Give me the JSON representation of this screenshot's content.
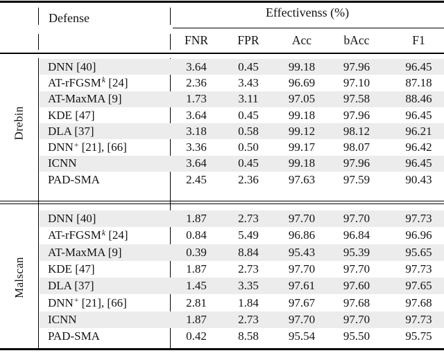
{
  "header": {
    "defense_label": "Defense",
    "group_header": "Effectivenss (%)",
    "columns": [
      "FNR",
      "FPR",
      "Acc",
      "bAcc",
      "F1"
    ]
  },
  "colors": {
    "row_shade": "#ececec",
    "rule": "#000000",
    "text": "#131313"
  },
  "groups": [
    {
      "label": "Drebin",
      "rows": [
        {
          "defense": {
            "base": "DNN",
            "sup": "",
            "sup_italic": false,
            "rest": " [40]"
          },
          "values": [
            "3.64",
            "0.45",
            "99.18",
            "97.96",
            "96.45"
          ]
        },
        {
          "defense": {
            "base": "AT-rFGSM",
            "sup": "k",
            "sup_italic": true,
            "rest": " [24]"
          },
          "values": [
            "2.36",
            "3.43",
            "96.69",
            "97.10",
            "87.18"
          ]
        },
        {
          "defense": {
            "base": "AT-MaxMA",
            "sup": "",
            "sup_italic": false,
            "rest": " [9]"
          },
          "values": [
            "1.73",
            "3.11",
            "97.05",
            "97.58",
            "88.46"
          ]
        },
        {
          "defense": {
            "base": "KDE",
            "sup": "",
            "sup_italic": false,
            "rest": " [47]"
          },
          "values": [
            "3.64",
            "0.45",
            "99.18",
            "97.96",
            "96.45"
          ]
        },
        {
          "defense": {
            "base": "DLA",
            "sup": "",
            "sup_italic": false,
            "rest": " [37]"
          },
          "values": [
            "3.18",
            "0.58",
            "99.12",
            "98.12",
            "96.21"
          ]
        },
        {
          "defense": {
            "base": "DNN",
            "sup": "+",
            "sup_italic": false,
            "rest": " [21], [66]"
          },
          "values": [
            "3.36",
            "0.50",
            "99.17",
            "98.07",
            "96.42"
          ]
        },
        {
          "defense": {
            "base": "ICNN",
            "sup": "",
            "sup_italic": false,
            "rest": ""
          },
          "values": [
            "3.64",
            "0.45",
            "99.18",
            "97.96",
            "96.45"
          ]
        },
        {
          "defense": {
            "base": "PAD-SMA",
            "sup": "",
            "sup_italic": false,
            "rest": ""
          },
          "values": [
            "2.45",
            "2.36",
            "97.63",
            "97.59",
            "90.43"
          ]
        }
      ]
    },
    {
      "label": "Malscan",
      "rows": [
        {
          "defense": {
            "base": "DNN",
            "sup": "",
            "sup_italic": false,
            "rest": " [40]"
          },
          "values": [
            "1.87",
            "2.73",
            "97.70",
            "97.70",
            "97.73"
          ]
        },
        {
          "defense": {
            "base": "AT-rFGSM",
            "sup": "k",
            "sup_italic": true,
            "rest": " [24]"
          },
          "values": [
            "0.84",
            "5.49",
            "96.86",
            "96.84",
            "96.96"
          ]
        },
        {
          "defense": {
            "base": "AT-MaxMA",
            "sup": "",
            "sup_italic": false,
            "rest": " [9]"
          },
          "values": [
            "0.39",
            "8.84",
            "95.43",
            "95.39",
            "95.65"
          ]
        },
        {
          "defense": {
            "base": "KDE",
            "sup": "",
            "sup_italic": false,
            "rest": " [47]"
          },
          "values": [
            "1.87",
            "2.73",
            "97.70",
            "97.70",
            "97.73"
          ]
        },
        {
          "defense": {
            "base": "DLA",
            "sup": "",
            "sup_italic": false,
            "rest": " [37]"
          },
          "values": [
            "1.45",
            "3.35",
            "97.61",
            "97.60",
            "97.65"
          ]
        },
        {
          "defense": {
            "base": "DNN",
            "sup": "+",
            "sup_italic": false,
            "rest": " [21], [66]"
          },
          "values": [
            "2.81",
            "1.84",
            "97.67",
            "97.68",
            "97.68"
          ]
        },
        {
          "defense": {
            "base": "ICNN",
            "sup": "",
            "sup_italic": false,
            "rest": ""
          },
          "values": [
            "1.87",
            "2.73",
            "97.70",
            "97.70",
            "97.73"
          ]
        },
        {
          "defense": {
            "base": "PAD-SMA",
            "sup": "",
            "sup_italic": false,
            "rest": ""
          },
          "values": [
            "0.42",
            "8.58",
            "95.54",
            "95.50",
            "95.75"
          ]
        }
      ]
    }
  ]
}
